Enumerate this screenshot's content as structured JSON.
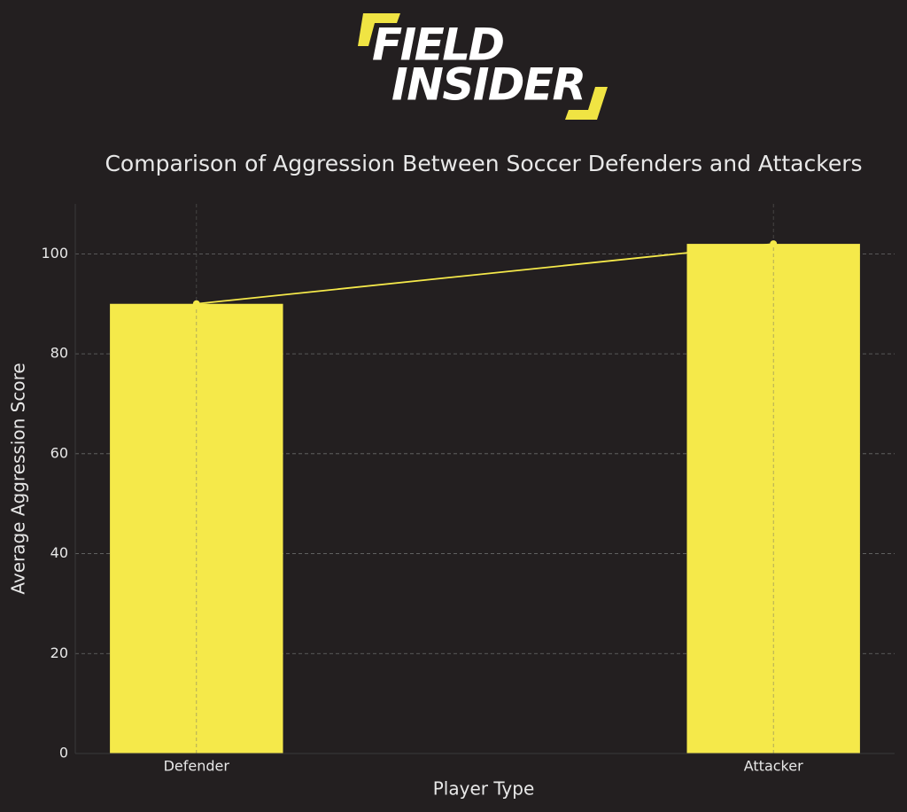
{
  "logo": {
    "line1": "FIELD",
    "line2": "INSIDER"
  },
  "chart_data": {
    "type": "bar",
    "title": "Comparison of Aggression Between Soccer Defenders and Attackers",
    "x_label": "Player Type",
    "y_label": "Average Aggression Score",
    "categories": [
      "Defender",
      "Attacker"
    ],
    "series": [
      {
        "type": "bar",
        "color": "#f5e94a",
        "values": [
          90,
          102
        ]
      },
      {
        "type": "line",
        "color": "#f5e94a",
        "values": [
          90,
          102
        ]
      }
    ],
    "ylim": [
      0,
      110
    ],
    "yticks": [
      0,
      20,
      40,
      60,
      80,
      100
    ],
    "grid": true
  }
}
